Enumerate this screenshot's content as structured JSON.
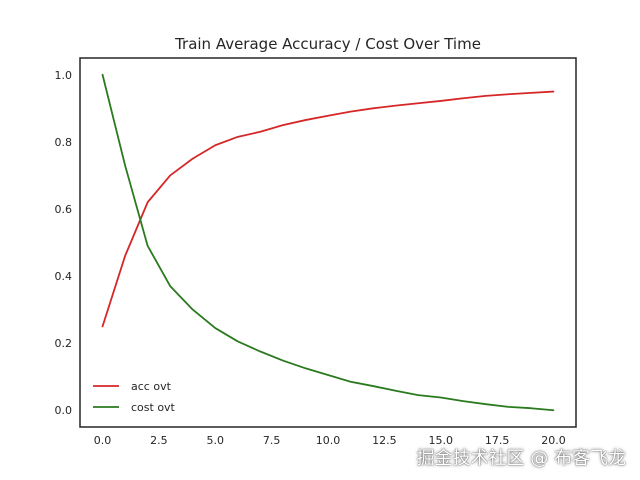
{
  "chart_data": {
    "type": "line",
    "title": "Train Average Accuracy / Cost Over Time",
    "xlabel": "",
    "ylabel": "",
    "xlim": [
      -1,
      21
    ],
    "ylim": [
      -0.05,
      1.05
    ],
    "xticks": [
      0.0,
      2.5,
      5.0,
      7.5,
      10.0,
      12.5,
      15.0,
      17.5,
      20.0
    ],
    "xtick_labels": [
      "0.0",
      "2.5",
      "5.0",
      "7.5",
      "10.0",
      "12.5",
      "15.0",
      "17.5",
      "20.0"
    ],
    "yticks": [
      0.0,
      0.2,
      0.4,
      0.6,
      0.8,
      1.0
    ],
    "ytick_labels": [
      "0.0",
      "0.2",
      "0.4",
      "0.6",
      "0.8",
      "1.0"
    ],
    "grid": false,
    "legend_position": "lower-left",
    "x": [
      0,
      1,
      2,
      3,
      4,
      5,
      6,
      7,
      8,
      9,
      10,
      11,
      12,
      13,
      14,
      15,
      16,
      17,
      18,
      19,
      20
    ],
    "series": [
      {
        "name": "acc ovt",
        "color": "#d62728",
        "values": [
          0.25,
          0.46,
          0.62,
          0.7,
          0.75,
          0.79,
          0.815,
          0.83,
          0.85,
          0.865,
          0.878,
          0.89,
          0.9,
          0.908,
          0.915,
          0.922,
          0.93,
          0.937,
          0.942,
          0.946,
          0.95
        ]
      },
      {
        "name": "cost ovt",
        "color": "#2a7a1e",
        "values": [
          1.0,
          0.73,
          0.49,
          0.37,
          0.3,
          0.245,
          0.205,
          0.175,
          0.148,
          0.125,
          0.105,
          0.085,
          0.072,
          0.058,
          0.045,
          0.038,
          0.027,
          0.018,
          0.01,
          0.006,
          0.0
        ]
      }
    ]
  },
  "watermark": "掘金技术社区 @ 布客飞龙"
}
